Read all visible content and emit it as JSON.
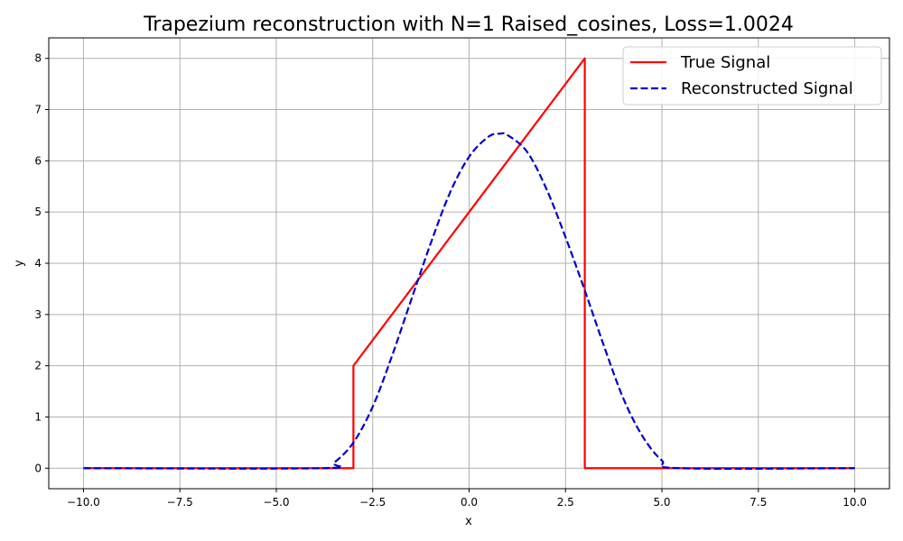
{
  "chart_data": {
    "type": "line",
    "title": "Trapezium reconstruction with N=1 Raised_cosines, Loss=1.0024",
    "xlabel": "x",
    "ylabel": "y",
    "xlim": [
      -10.9,
      10.9
    ],
    "ylim": [
      -0.4,
      8.4
    ],
    "x_ticks": [
      -10.0,
      -7.5,
      -5.0,
      -2.5,
      0.0,
      2.5,
      5.0,
      7.5,
      10.0
    ],
    "x_tick_labels": [
      "−10.0",
      "−7.5",
      "−5.0",
      "−2.5",
      "0.0",
      "2.5",
      "5.0",
      "7.5",
      "10.0"
    ],
    "y_ticks": [
      0,
      1,
      2,
      3,
      4,
      5,
      6,
      7,
      8
    ],
    "y_tick_labels": [
      "0",
      "1",
      "2",
      "3",
      "4",
      "5",
      "6",
      "7",
      "8"
    ],
    "grid": true,
    "legend_position": "top-right",
    "series": [
      {
        "name": "True Signal",
        "color": "#ff0000",
        "style": "solid",
        "x": [
          -10,
          -3,
          -3,
          3,
          3,
          10
        ],
        "y": [
          0,
          0,
          2,
          8,
          0,
          0
        ]
      },
      {
        "name": "Reconstructed Signal",
        "color": "#0000cc",
        "style": "dashed",
        "x": [
          -10,
          -3.85,
          -3.5,
          -3.0,
          -2.5,
          -2.0,
          -1.5,
          -1.0,
          -0.5,
          0.0,
          0.5,
          0.8,
          1.0,
          1.5,
          2.0,
          2.5,
          3.0,
          3.5,
          4.0,
          4.5,
          5.0,
          5.45,
          10
        ],
        "y": [
          0,
          0,
          0.11,
          0.5,
          1.2,
          2.19,
          3.29,
          4.38,
          5.37,
          6.08,
          6.47,
          6.53,
          6.5,
          6.18,
          5.46,
          4.51,
          3.47,
          2.38,
          1.36,
          0.62,
          0.15,
          0,
          0
        ]
      }
    ]
  }
}
